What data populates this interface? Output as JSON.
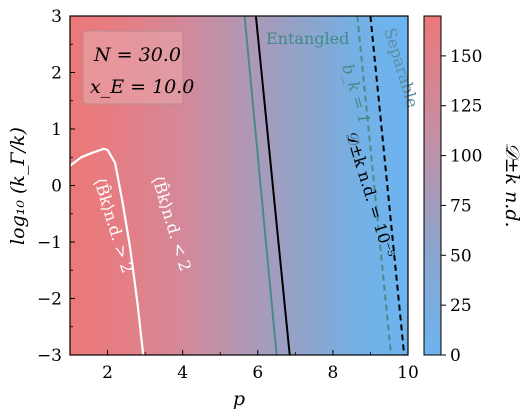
{
  "chart_data": {
    "type": "heatmap",
    "title": "",
    "xlabel": "p",
    "ylabel": "log₁₀ (k_Γ/k)",
    "xlim": [
      1,
      10
    ],
    "ylim": [
      -3,
      3
    ],
    "x_ticks": [
      "2",
      "4",
      "6",
      "8",
      "10"
    ],
    "y_ticks": [
      "−3",
      "−2",
      "−1",
      "0",
      "1",
      "2",
      "3"
    ],
    "colorbar": {
      "label": "𝒟±k n.d.",
      "range": [
        0,
        170
      ],
      "ticks": [
        "0",
        "25",
        "50",
        "75",
        "100",
        "125",
        "150"
      ],
      "low_color": "#6cb4f0",
      "high_color": "#ec7a7a"
    },
    "parameters": {
      "line1": "N = 30.0",
      "line2": "x_E = 10.0"
    },
    "curves": [
      {
        "name": "boundary-white",
        "color": "#ffffff",
        "points": [
          [
            1.0,
            0.35
          ],
          [
            1.3,
            0.5
          ],
          [
            1.6,
            0.58
          ],
          [
            1.9,
            0.65
          ],
          [
            2.0,
            0.63
          ],
          [
            2.2,
            0.4
          ],
          [
            2.4,
            -0.3
          ],
          [
            2.6,
            -1.1
          ],
          [
            2.8,
            -2.1
          ],
          [
            2.95,
            -3.0
          ]
        ]
      },
      {
        "name": "entangled-boundary",
        "color": "#4a8a8a",
        "points": [
          [
            5.65,
            3.0
          ],
          [
            6.5,
            -3.0
          ]
        ]
      },
      {
        "name": "dnd-threshold",
        "color": "#000000",
        "points": [
          [
            5.95,
            3.0
          ],
          [
            6.85,
            -3.0
          ]
        ]
      },
      {
        "name": "bk-equals-1",
        "color": "#4a8a8a",
        "dashed": true,
        "points": [
          [
            8.65,
            3.0
          ],
          [
            9.55,
            -3.0
          ]
        ]
      },
      {
        "name": "separable-boundary",
        "color": "#000000",
        "dashed": true,
        "points": [
          [
            9.0,
            3.0
          ],
          [
            9.9,
            -3.0
          ]
        ]
      }
    ],
    "annotations": {
      "entangled": "Entangled",
      "separable": "Separable",
      "bk_eq_1": "b_k = 1",
      "dnd_eq": "𝒟±k n.d. = 10⁻⁵",
      "bk_gt_2": "⟨B̂k⟩n.d. > 2",
      "bk_lt_2": "⟨B̂k⟩n.d. < 2"
    }
  }
}
